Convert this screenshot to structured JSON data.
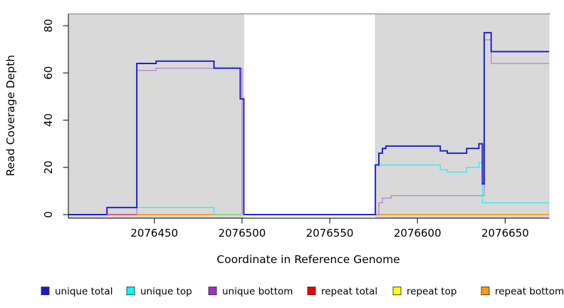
{
  "chart_data": {
    "type": "line",
    "title": "",
    "xlabel": "Coordinate in Reference Genome",
    "ylabel": "Read Coverage Depth",
    "xlim": [
      2076401,
      2076675
    ],
    "ylim": [
      0,
      80
    ],
    "x_ticks": [
      2076450,
      2076500,
      2076550,
      2076600,
      2076650
    ],
    "y_ticks": [
      0,
      20,
      40,
      60,
      80
    ],
    "grid": false,
    "legend_position": "bottom",
    "plot_background": "#ffffff",
    "shaded_regions": [
      {
        "x0": 2076401,
        "x1": 2076501,
        "color": "#d9d9d9"
      },
      {
        "x0": 2076576,
        "x1": 2076675,
        "color": "#d9d9d9"
      }
    ],
    "series": [
      {
        "name": "repeat total",
        "color": "#e01414",
        "width": 1.3,
        "points": [
          [
            2076401,
            0
          ],
          [
            2076675,
            0
          ]
        ]
      },
      {
        "name": "repeat top",
        "color": "#f5f51e",
        "width": 1.3,
        "points": [
          [
            2076401,
            0
          ],
          [
            2076675,
            0
          ]
        ]
      },
      {
        "name": "repeat bottom",
        "color": "#ff9912",
        "width": 1.6,
        "points": [
          [
            2076401,
            0
          ],
          [
            2076675,
            0
          ]
        ]
      },
      {
        "name": "unique bottom",
        "color": "#b683db",
        "width": 1.3,
        "points": [
          [
            2076401,
            0
          ],
          [
            2076440,
            0
          ],
          [
            2076440,
            61
          ],
          [
            2076451,
            61
          ],
          [
            2076451,
            62
          ],
          [
            2076500,
            62
          ],
          [
            2076500,
            0
          ],
          [
            2076576,
            0
          ],
          [
            2076578,
            0
          ],
          [
            2076578,
            5
          ],
          [
            2076580,
            5
          ],
          [
            2076580,
            7
          ],
          [
            2076585,
            7
          ],
          [
            2076585,
            8
          ],
          [
            2076638,
            8
          ],
          [
            2076638,
            74
          ],
          [
            2076642,
            74
          ],
          [
            2076642,
            64
          ],
          [
            2076675,
            64
          ]
        ]
      },
      {
        "name": "unique top",
        "color": "#4fe9ed",
        "width": 1.6,
        "points": [
          [
            2076401,
            0
          ],
          [
            2076423,
            0
          ],
          [
            2076423,
            3
          ],
          [
            2076484,
            3
          ],
          [
            2076484,
            0
          ],
          [
            2076576,
            0
          ],
          [
            2076576,
            21
          ],
          [
            2076613,
            21
          ],
          [
            2076613,
            19
          ],
          [
            2076617,
            19
          ],
          [
            2076617,
            18
          ],
          [
            2076628,
            18
          ],
          [
            2076628,
            20
          ],
          [
            2076635,
            20
          ],
          [
            2076635,
            22
          ],
          [
            2076637,
            22
          ],
          [
            2076637,
            5
          ],
          [
            2076675,
            5
          ]
        ]
      },
      {
        "name": "unique total",
        "color": "#2323cd",
        "width": 2.0,
        "points": [
          [
            2076401,
            0
          ],
          [
            2076423,
            0
          ],
          [
            2076423,
            3
          ],
          [
            2076440,
            3
          ],
          [
            2076440,
            64
          ],
          [
            2076451,
            64
          ],
          [
            2076451,
            65
          ],
          [
            2076484,
            65
          ],
          [
            2076484,
            62
          ],
          [
            2076499,
            62
          ],
          [
            2076499,
            49
          ],
          [
            2076501,
            49
          ],
          [
            2076501,
            0
          ],
          [
            2076576,
            0
          ],
          [
            2076576,
            21
          ],
          [
            2076578,
            21
          ],
          [
            2076578,
            26
          ],
          [
            2076580,
            26
          ],
          [
            2076580,
            28
          ],
          [
            2076582,
            28
          ],
          [
            2076582,
            29
          ],
          [
            2076613,
            29
          ],
          [
            2076613,
            27
          ],
          [
            2076617,
            27
          ],
          [
            2076617,
            26
          ],
          [
            2076628,
            26
          ],
          [
            2076628,
            28
          ],
          [
            2076635,
            28
          ],
          [
            2076635,
            30
          ],
          [
            2076637,
            30
          ],
          [
            2076637,
            13
          ],
          [
            2076638,
            13
          ],
          [
            2076638,
            77
          ],
          [
            2076642,
            77
          ],
          [
            2076642,
            69
          ],
          [
            2076675,
            69
          ]
        ]
      }
    ],
    "baseline_overlap_segments": [
      {
        "x0": 2076423,
        "x1": 2076440,
        "color": "#cf4f86"
      },
      {
        "x0": 2076484,
        "x1": 2076501,
        "color": "#8fd48f"
      }
    ],
    "legend": [
      {
        "label": "unique total",
        "color": "#1a1ad6"
      },
      {
        "label": "unique top",
        "color": "#00ffff"
      },
      {
        "label": "unique bottom",
        "color": "#9932cc"
      },
      {
        "label": "repeat total",
        "color": "#ee0000"
      },
      {
        "label": "repeat top",
        "color": "#ffff00"
      },
      {
        "label": "repeat bottom",
        "color": "#ff9912"
      }
    ],
    "colors": {
      "shaded_region": "#d9d9d9",
      "axis_line": "#2a2a2a",
      "plot_top_border": "#8c8c8c"
    }
  }
}
